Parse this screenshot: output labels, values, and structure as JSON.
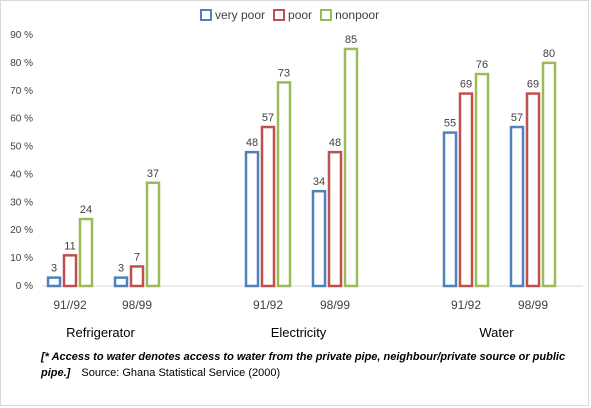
{
  "chart_data": {
    "type": "bar",
    "yaxis": {
      "ticks": [
        "0 %",
        "10 %",
        "20 %",
        "30 %",
        "40 %",
        "50 %",
        "60 %",
        "70 %",
        "80 %",
        "90 %"
      ],
      "ylim": [
        0,
        90
      ],
      "grid": false
    },
    "series": [
      {
        "name": "very poor",
        "color": "#4f81bd"
      },
      {
        "name": "poor",
        "color": "#c0504d"
      },
      {
        "name": "nonpoor",
        "color": "#9bbb59"
      }
    ],
    "legend_position": "top",
    "groups": [
      {
        "label": "Refrigerator",
        "categories": [
          {
            "label": "91//92",
            "values": [
              3,
              11,
              24
            ]
          },
          {
            "label": "98/99",
            "values": [
              3,
              7,
              37
            ]
          }
        ]
      },
      {
        "label": "Electricity",
        "categories": [
          {
            "label": "91/92",
            "values": [
              48,
              57,
              73
            ]
          },
          {
            "label": "98/99",
            "values": [
              34,
              48,
              85
            ]
          }
        ]
      },
      {
        "label": "Water",
        "categories": [
          {
            "label": "91/92",
            "values": [
              55,
              69,
              76
            ]
          },
          {
            "label": "98/99",
            "values": [
              57,
              69,
              80
            ]
          }
        ]
      }
    ]
  },
  "footnote": {
    "note": "[* Access to water denotes access to water from the private pipe, neighbour/private source or public pipe.]",
    "source": "Source: Ghana Statistical Service (2000)"
  }
}
